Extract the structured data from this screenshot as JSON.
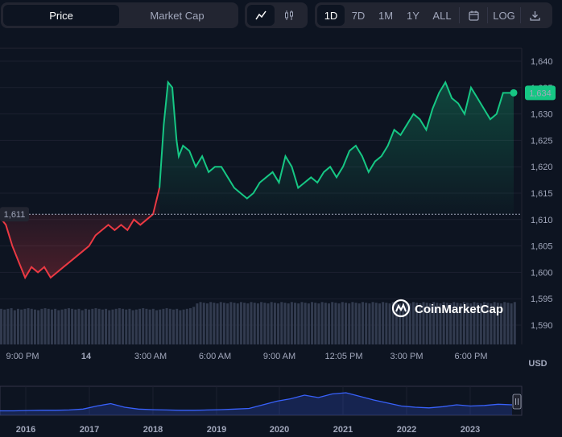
{
  "tabs": {
    "price": "Price",
    "market_cap": "Market Cap"
  },
  "chart_type_buttons": [
    {
      "icon": "line-chart-icon",
      "active": true
    },
    {
      "icon": "candlestick-icon",
      "active": false
    }
  ],
  "ranges": [
    {
      "label": "1D",
      "active": true
    },
    {
      "label": "7D",
      "active": false
    },
    {
      "label": "1M",
      "active": false
    },
    {
      "label": "1Y",
      "active": false
    },
    {
      "label": "ALL",
      "active": false
    }
  ],
  "tools": {
    "calendar_icon": "calendar-icon",
    "log_label": "LOG",
    "download_icon": "download-icon"
  },
  "colors": {
    "up": "#16c784",
    "down": "#ea3943",
    "panel": "#222531",
    "background": "#0d1421",
    "volume": "#323b4f",
    "navigator_line": "#3861fb"
  },
  "watermark": "CoinMarketCap",
  "currency_label": "USD",
  "chart_data": {
    "type": "line",
    "y_ticks": [
      "1,640",
      "1,635",
      "1,630",
      "1,625",
      "1,620",
      "1,615",
      "1,610",
      "1,605",
      "1,600",
      "1,595",
      "1,590"
    ],
    "ylim": [
      1590,
      1641
    ],
    "x_ticks": [
      "9:00 PM",
      "14",
      "3:00 AM",
      "6:00 AM",
      "9:00 AM",
      "12:05 PM",
      "3:00 PM",
      "6:00 PM"
    ],
    "baseline": 1611,
    "baseline_label": "1,611",
    "current": 1634,
    "current_label": "1,634",
    "series": [
      {
        "x": [
          0,
          0.2,
          0.5,
          0.8,
          1.1,
          1.4,
          1.7,
          2.0,
          2.3,
          2.6,
          2.9,
          3.2,
          3.5,
          3.8,
          4.1,
          4.4,
          4.7,
          5.0,
          5.3,
          5.6,
          5.9,
          6.2,
          6.5,
          6.8,
          7.1,
          7.4,
          7.6,
          7.8,
          8.0,
          8.1,
          8.2,
          8.3,
          8.5,
          8.8,
          9.1,
          9.4,
          9.7,
          10.0,
          10.3,
          10.6,
          10.9,
          11.2,
          11.5,
          11.8,
          12.1,
          12.4,
          12.7,
          13.0,
          13.3,
          13.6,
          13.9,
          14.2,
          14.5,
          14.8,
          15.1,
          15.4,
          15.7,
          16.0,
          16.3,
          16.6,
          16.9,
          17.2,
          17.5,
          17.8,
          18.1,
          18.4,
          18.7,
          19.0,
          19.3,
          19.6,
          19.9,
          20.2,
          20.5,
          20.8,
          21.1,
          21.4,
          21.7,
          22.0,
          22.3,
          22.6,
          22.9,
          23.2,
          23.5,
          23.8,
          24.0
        ],
        "y": [
          1610,
          1609,
          1605,
          1602,
          1599,
          1601,
          1600,
          1601,
          1599,
          1600,
          1601,
          1602,
          1603,
          1604,
          1605,
          1607,
          1608,
          1609,
          1608,
          1609,
          1608,
          1610,
          1609,
          1610,
          1611,
          1616,
          1628,
          1636,
          1635,
          1630,
          1625,
          1622,
          1624,
          1623,
          1620,
          1622,
          1619,
          1620,
          1620,
          1618,
          1616,
          1615,
          1614,
          1615,
          1617,
          1618,
          1619,
          1617,
          1622,
          1620,
          1616,
          1617,
          1618,
          1617,
          1619,
          1620,
          1618,
          1620,
          1623,
          1624,
          1622,
          1619,
          1621,
          1622,
          1624,
          1627,
          1626,
          1628,
          1630,
          1629,
          1627,
          1631,
          1634,
          1636,
          1633,
          1632,
          1630,
          1635,
          1633,
          1631,
          1629,
          1630,
          1634,
          1634,
          1634
        ]
      }
    ],
    "volume": [
      52,
      51,
      52,
      53,
      50,
      52,
      51,
      52,
      53,
      52,
      51,
      50,
      52,
      53,
      52,
      51,
      52,
      50,
      51,
      52,
      53,
      52,
      51,
      52,
      50,
      52,
      51,
      52,
      53,
      52,
      51,
      52,
      50,
      51,
      52,
      53,
      52,
      51,
      52,
      50,
      51,
      52,
      53,
      52,
      51,
      52,
      50,
      51,
      52,
      53,
      52,
      51,
      52,
      50,
      51,
      52,
      53,
      55,
      60,
      62,
      61,
      60,
      62,
      61,
      60,
      62,
      61,
      60,
      62,
      61,
      60,
      62,
      61,
      60,
      62,
      61,
      60,
      62,
      61,
      60,
      62,
      61,
      60,
      62,
      61,
      60,
      62,
      61,
      60,
      62,
      61,
      60,
      62,
      61,
      60,
      62,
      61,
      60,
      62,
      61,
      60,
      62,
      61,
      60,
      62,
      61,
      60,
      62,
      61,
      60,
      62,
      61,
      60,
      62,
      61,
      60,
      62,
      61,
      60,
      62,
      61,
      60,
      62,
      61,
      60,
      62,
      61,
      60,
      62,
      61,
      60,
      62,
      61,
      60,
      62,
      61,
      60,
      62,
      61,
      60,
      62,
      61,
      60,
      62,
      61,
      60,
      62,
      61,
      60,
      62,
      61,
      60,
      62
    ],
    "navigator": {
      "years": [
        "2016",
        "2017",
        "2018",
        "2019",
        "2020",
        "2021",
        "2022",
        "2023"
      ],
      "values": [
        2,
        2,
        2.5,
        3,
        3,
        3.5,
        5,
        10,
        14,
        8,
        5,
        4,
        3.5,
        3,
        3,
        3.5,
        4,
        5,
        6,
        12,
        18,
        22,
        28,
        24,
        30,
        32,
        26,
        20,
        15,
        10,
        8,
        7,
        9,
        12,
        10,
        11,
        13,
        12
      ]
    }
  }
}
